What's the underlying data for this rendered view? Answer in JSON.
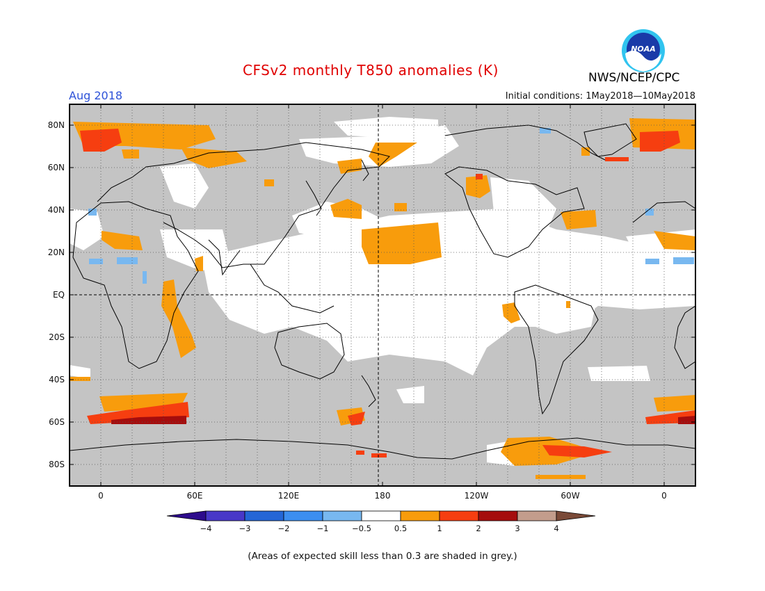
{
  "header": {
    "title": "CFSv2 monthly T850 anomalies (K)",
    "month": "Aug 2018",
    "initial_conditions": "Initial conditions: 1May2018—10May2018",
    "agency": "NWS/NCEP/CPC",
    "logo_text": "NOAA"
  },
  "map": {
    "lat_labels": [
      "80N",
      "60N",
      "40N",
      "20N",
      "EQ",
      "20S",
      "40S",
      "60S",
      "80S"
    ],
    "lon_labels": [
      "0",
      "60E",
      "120E",
      "180",
      "120W",
      "60W",
      "0"
    ]
  },
  "legend": {
    "tick_labels": [
      "−4",
      "−3",
      "−2",
      "−1",
      "−0.5",
      "0.5",
      "1",
      "2",
      "3",
      "4"
    ],
    "colors": [
      "#2d0b8c",
      "#4838c8",
      "#2466d6",
      "#3c8ef0",
      "#78b8f0",
      "#ffffff",
      "#f89c0c",
      "#f63e10",
      "#a50d0d",
      "#c39d8c",
      "#7a4a38"
    ]
  },
  "colors": {
    "low_skill_grey": "#c4c4c4",
    "anomaly_0_5_to_1": "#f89c0c",
    "anomaly_1_to_2": "#f63e10",
    "anomaly_2_to_3": "#a50d0d",
    "anomaly_neg_0_5_to_neg_1": "#78b8f0"
  },
  "footnote": "(Areas of expected skill less than 0.3 are shaded in grey.)"
}
